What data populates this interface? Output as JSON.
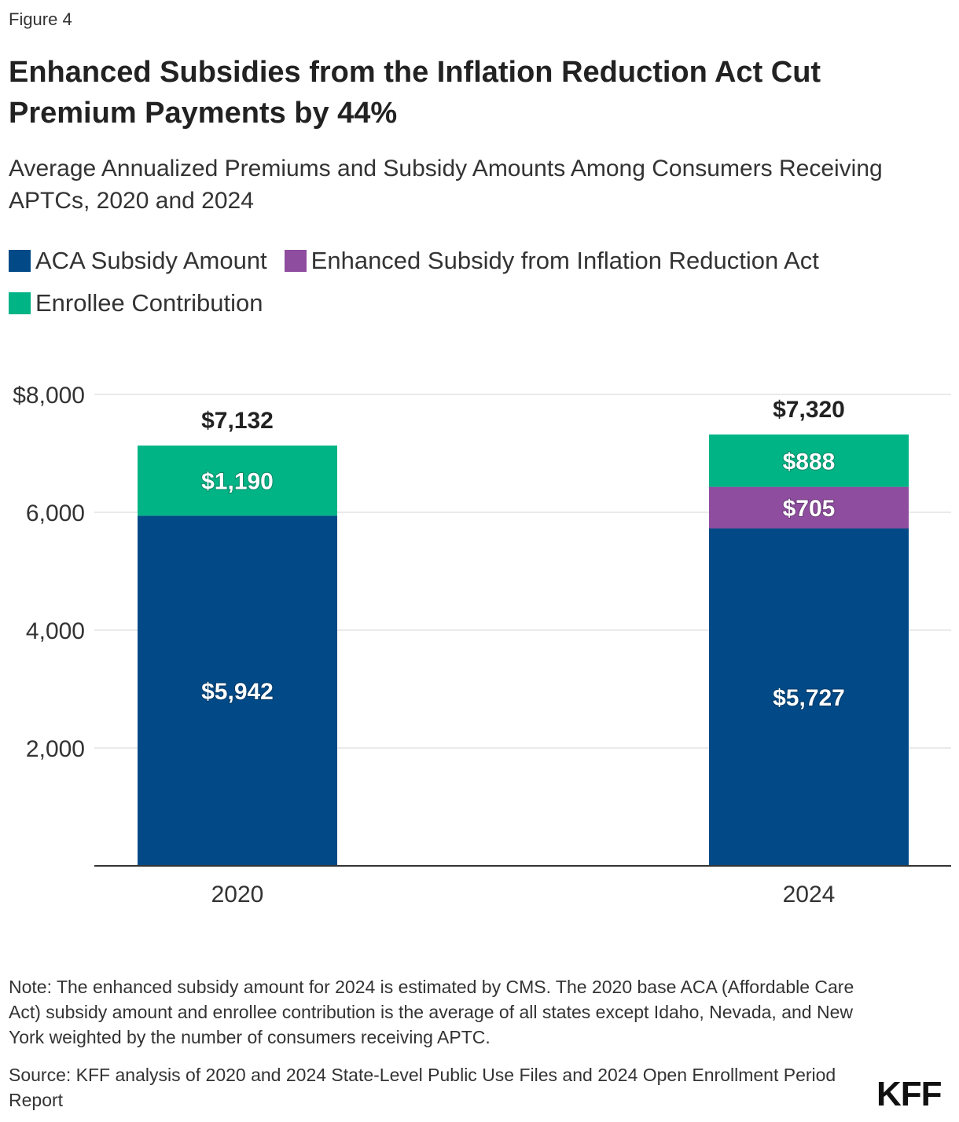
{
  "figure_label": "Figure 4",
  "title": "Enhanced Subsidies from the Inflation Reduction Act Cut Premium Payments by 44%",
  "subtitle": "Average Annualized Premiums and Subsidy Amounts Among Consumers Receiving APTCs, 2020 and 2024",
  "colors": {
    "aca": "#014a87",
    "enhanced": "#8e4d9e",
    "enrollee": "#00b486"
  },
  "chart_data": {
    "type": "bar",
    "stacked": true,
    "categories": [
      "2020",
      "2024"
    ],
    "series": [
      {
        "name": "ACA Subsidy Amount",
        "key": "aca",
        "values": [
          5942,
          5727
        ],
        "labels": [
          "$5,942",
          "$5,727"
        ]
      },
      {
        "name": "Enhanced Subsidy from Inflation Reduction Act",
        "key": "enhanced",
        "values": [
          0,
          705
        ],
        "labels": [
          "",
          "$705"
        ]
      },
      {
        "name": "Enrollee Contribution",
        "key": "enrollee",
        "values": [
          1190,
          888
        ],
        "labels": [
          "$1,190",
          "$888"
        ]
      }
    ],
    "totals": [
      7132,
      7320
    ],
    "total_labels": [
      "$7,132",
      "$7,320"
    ],
    "ylim": [
      0,
      8000
    ],
    "yticks": [
      2000,
      4000,
      6000,
      8000
    ],
    "ytick_labels": [
      "2,000",
      "4,000",
      "6,000",
      "$8,000"
    ],
    "grid": true,
    "legend_position": "top-left"
  },
  "note": "Note: The enhanced subsidy amount for 2024 is estimated by CMS. The 2020 base ACA (Affordable Care Act) subsidy amount and enrollee contribution is the average of all states except Idaho, Nevada, and New York weighted by the number of consumers receiving APTC.",
  "source": "Source: KFF analysis of 2020 and 2024 State-Level Public Use Files and 2024 Open Enrollment Period Report",
  "logo_text": "KFF"
}
